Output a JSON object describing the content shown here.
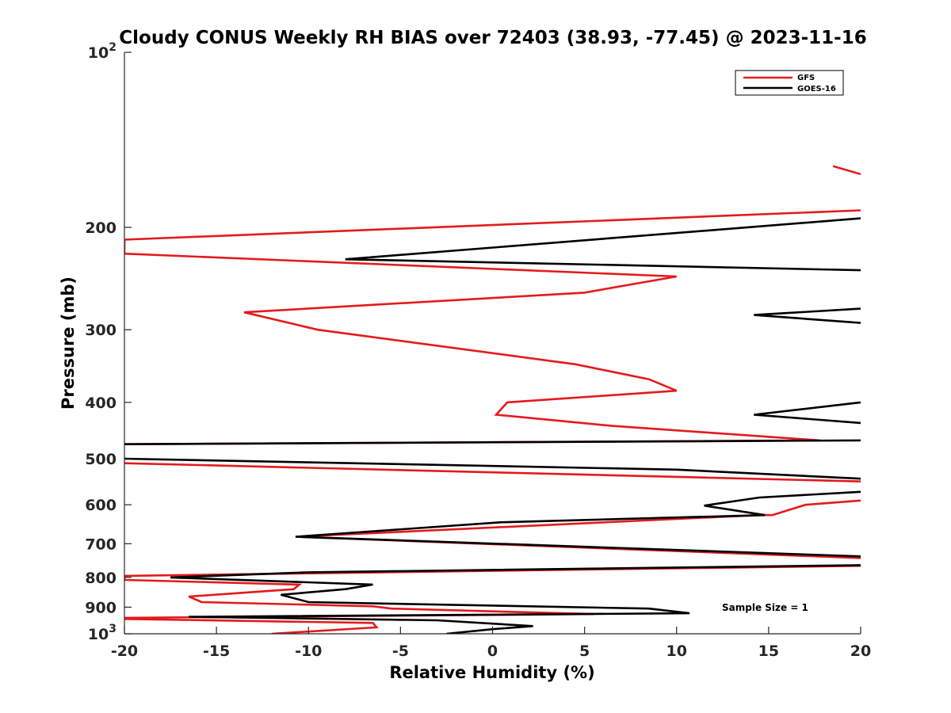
{
  "chart_data": {
    "type": "line",
    "title": "Cloudy CONUS Weekly RH BIAS over 72403 (38.93, -77.45) @ 2023-11-16",
    "xlabel": "Relative Humidity (%)",
    "ylabel": "Pressure (mb)",
    "xlim": [
      -20,
      20
    ],
    "ylim": [
      100,
      1000
    ],
    "y_scale": "log",
    "y_reversed": true,
    "grid": false,
    "legend_position": "top-right",
    "x_ticks": [
      -20,
      -15,
      -10,
      -5,
      0,
      5,
      10,
      15,
      20
    ],
    "x_tick_labels": [
      "-20",
      "-15",
      "-10",
      "-5",
      "0",
      "5",
      "10",
      "15",
      "20"
    ],
    "y_ticks": [
      100,
      200,
      300,
      400,
      500,
      600,
      700,
      800,
      900,
      1000
    ],
    "y_tick_labels": [
      {
        "base": "10",
        "exp": "2"
      },
      {
        "base": "200",
        "exp": ""
      },
      {
        "base": "300",
        "exp": ""
      },
      {
        "base": "400",
        "exp": ""
      },
      {
        "base": "500",
        "exp": ""
      },
      {
        "base": "600",
        "exp": ""
      },
      {
        "base": "700",
        "exp": ""
      },
      {
        "base": "800",
        "exp": ""
      },
      {
        "base": "900",
        "exp": ""
      },
      {
        "base": "10",
        "exp": "3"
      }
    ],
    "annotation": "Sample Size = 1",
    "series": [
      {
        "name": "GFS",
        "color": "#e41a1c",
        "segments": [
          [
            [
              18.5,
              157
            ],
            [
              20,
              162
            ]
          ],
          [
            [
              20,
              187
            ],
            [
              -20,
              210
            ],
            [
              -20,
              222
            ],
            [
              10,
              243
            ],
            [
              5,
              259
            ],
            [
              -13.5,
              280
            ],
            [
              -9.5,
              300
            ],
            [
              4.5,
              344
            ],
            [
              8.5,
              365
            ],
            [
              10,
              382
            ],
            [
              0.8,
              400
            ],
            [
              0.2,
              420
            ],
            [
              6.5,
              439
            ],
            [
              17.8,
              465
            ],
            [
              -20,
              472
            ],
            [
              -20,
              472
            ]
          ],
          [
            [
              -20,
              509
            ],
            [
              20,
              547
            ]
          ],
          [
            [
              20,
              590
            ],
            [
              17,
              600
            ],
            [
              15.2,
              625
            ],
            [
              14.5,
              625
            ],
            [
              -10.7,
              681
            ],
            [
              20,
              741
            ]
          ],
          [
            [
              20,
              764
            ],
            [
              -20,
              795
            ],
            [
              -20,
              808
            ],
            [
              -10.5,
              823
            ],
            [
              -10.8,
              838
            ],
            [
              -16.5,
              863
            ],
            [
              -15.8,
              882
            ],
            [
              -6.5,
              897
            ],
            [
              -5.5,
              905
            ],
            [
              5.5,
              925
            ],
            [
              -20,
              939
            ],
            [
              -20,
              943
            ],
            [
              -6.5,
              958
            ],
            [
              -6.3,
              975
            ],
            [
              -12,
              1000
            ]
          ]
        ]
      },
      {
        "name": "GOES-16",
        "color": "#000000",
        "segments": [
          [
            [
              20,
              193
            ],
            [
              -8,
              227
            ],
            [
              20,
              237
            ]
          ],
          [
            [
              20,
              276
            ],
            [
              14.2,
              283
            ],
            [
              20,
              292
            ]
          ],
          [
            [
              20,
              400
            ],
            [
              14.2,
              420
            ],
            [
              20,
              434
            ]
          ],
          [
            [
              20,
              465
            ],
            [
              -20,
              472
            ],
            [
              -20,
              472
            ]
          ],
          [
            [
              -20,
              500
            ],
            [
              10,
              522
            ],
            [
              20,
              541
            ]
          ],
          [
            [
              20,
              570
            ],
            [
              14.5,
              583
            ],
            [
              11.5,
              602
            ],
            [
              14.8,
              625
            ],
            [
              0.5,
              643
            ],
            [
              -10.7,
              681
            ],
            [
              20,
              736
            ]
          ],
          [
            [
              20,
              762
            ],
            [
              -10,
              784
            ],
            [
              -17.5,
              800
            ],
            [
              -6.5,
              823
            ],
            [
              -8,
              838
            ],
            [
              -11.5,
              857
            ],
            [
              -10,
              882
            ],
            [
              8.5,
              905
            ],
            [
              10.7,
              922
            ],
            [
              -16.5,
              935
            ],
            [
              -3,
              948
            ],
            [
              2.2,
              970
            ],
            [
              0,
              982
            ],
            [
              -2.5,
              1000
            ]
          ]
        ]
      }
    ]
  }
}
